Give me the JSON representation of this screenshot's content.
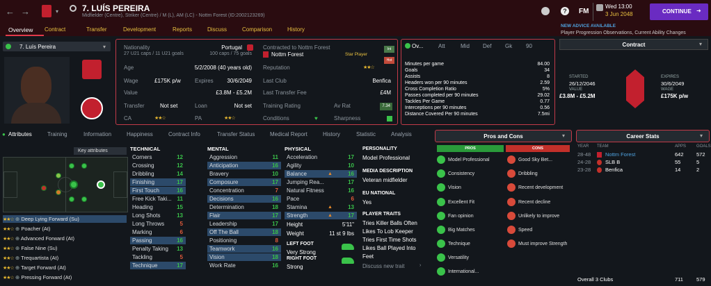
{
  "header": {
    "name": "7. LUÍS PEREIRA",
    "subtitle": "Midfielder (Centre), Striker (Centre) / M (L), AM (LC) - Nottm Forest (ID:2002123269)",
    "date": "Wed 13:00",
    "date2": "3 Jun 2048",
    "fm": "FM",
    "continue": "CONTINUE"
  },
  "nav": [
    "Overview",
    "Contract",
    "Transfer",
    "Development",
    "Reports",
    "Discuss",
    "Comparison",
    "History"
  ],
  "advice": {
    "title": "NEW ADVICE AVAILABLE",
    "text": "Player Progression Observations, Current Ability Changes"
  },
  "player_card": {
    "name": "7. Luís Pereira"
  },
  "info": {
    "nationality_k": "Nationality",
    "nationality_v": "Portugal",
    "u21": "27 U21 caps / 11 U21 goals",
    "caps": "100 caps / 75 goals",
    "age_k": "Age",
    "age_v": "5/2/2008 (40 years old)",
    "wage_k": "Wage",
    "wage_v": "£175K p/w",
    "expires_k": "Expires",
    "expires_v": "30/6/2049",
    "value_k": "Value",
    "value_v": "£3.8M - £5.2M",
    "transfer_k": "Transfer",
    "transfer_v": "Not set",
    "loan_k": "Loan",
    "loan_v": "Not set",
    "ca_k": "CA",
    "pa_k": "PA"
  },
  "club": {
    "contracted": "Contracted to Nottm Forest",
    "club": "Nottm Forest",
    "star": "Star Player",
    "int": "Int",
    "hot": "Hot",
    "rep_k": "Reputation",
    "lastclub_k": "Last Club",
    "lastclub_v": "Benfica",
    "fee_k": "Last Transfer Fee",
    "fee_v": "£4M",
    "training_k": "Training Rating",
    "avrat_k": "Av Rat",
    "avrat_v": "7.34",
    "cond_k": "Conditions",
    "sharp_k": "Sharpness"
  },
  "stats_tabs": [
    "Ov...",
    "Att",
    "Mid",
    "Def",
    "Gk",
    "90"
  ],
  "stats": [
    [
      "Minutes per game",
      "84.00"
    ],
    [
      "Goals",
      "34"
    ],
    [
      "Assists",
      "8"
    ],
    [
      "Headers won per 90 minutes",
      "2.59"
    ],
    [
      "Cross Completion Ratio",
      "5%"
    ],
    [
      "Passes completed per 90 minutes",
      "29.02"
    ],
    [
      "Tackles Per Game",
      "0.77"
    ],
    [
      "Interceptions per 90 minutes",
      "0.56"
    ],
    [
      "Distance Covered Per 90 minutes",
      "7.5mi"
    ]
  ],
  "contract": {
    "title": "Contract",
    "started_k": "STARTED",
    "started_v": "26/12/2046",
    "value_k": "VALUE",
    "value_v": "£3.8M - £5.2M",
    "expires_k": "EXPIRES",
    "expires_v": "30/6/2049",
    "wage_k": "WAGE",
    "wage_v": "£175K p/w"
  },
  "subtabs": [
    "Attributes",
    "Training",
    "Information",
    "Happiness",
    "Contract Info",
    "Transfer Status",
    "Medical Report",
    "History",
    "Statistic",
    "Analysis"
  ],
  "key_attr": "Key attributes",
  "technical": {
    "title": "TECHNICAL",
    "items": [
      [
        "Corners",
        "12"
      ],
      [
        "Crossing",
        "12"
      ],
      [
        "Dribbling",
        "14"
      ],
      [
        "Finishing",
        "17"
      ],
      [
        "First Touch",
        "16"
      ],
      [
        "Free Kick Taki...",
        "11"
      ],
      [
        "Heading",
        "15"
      ],
      [
        "Long Shots",
        "13"
      ],
      [
        "Long Throws",
        "5"
      ],
      [
        "Marking",
        "6"
      ],
      [
        "Passing",
        "16"
      ],
      [
        "Penalty Taking",
        "13"
      ],
      [
        "Tackling",
        "5"
      ],
      [
        "Technique",
        "17"
      ]
    ]
  },
  "mental": {
    "title": "MENTAL",
    "items": [
      [
        "Aggression",
        "11"
      ],
      [
        "Anticipation",
        "16"
      ],
      [
        "Bravery",
        "10"
      ],
      [
        "Composure",
        "17"
      ],
      [
        "Concentration",
        "7"
      ],
      [
        "Decisions",
        "16"
      ],
      [
        "Determination",
        "18"
      ],
      [
        "Flair",
        "17"
      ],
      [
        "Leadership",
        "17"
      ],
      [
        "Off The Ball",
        "18"
      ],
      [
        "Positioning",
        "8"
      ],
      [
        "Teamwork",
        "16"
      ],
      [
        "Vision",
        "18"
      ],
      [
        "Work Rate",
        "16"
      ]
    ]
  },
  "physical": {
    "title": "PHYSICAL",
    "items": [
      [
        "Acceleration",
        "17"
      ],
      [
        "Agility",
        "10"
      ],
      [
        "Balance",
        "16"
      ],
      [
        "Jumping Rea...",
        "17"
      ],
      [
        "Natural Fitness",
        "16"
      ],
      [
        "Pace",
        "6"
      ],
      [
        "Stamina",
        "13"
      ],
      [
        "Strength",
        "17"
      ]
    ]
  },
  "body": {
    "height_k": "Height",
    "height_v": "5'11\"",
    "weight_k": "Weight",
    "weight_v": "11 st 9 lbs",
    "lf_k": "LEFT FOOT",
    "lf_v": "Very Strong",
    "rf_k": "RIGHT FOOT",
    "rf_v": "Strong"
  },
  "personality": {
    "title": "PERSONALITY",
    "v": "Model Professional",
    "media_k": "MEDIA DESCRIPTION",
    "media_v": "Veteran midfielder",
    "eu_k": "EU NATIONAL",
    "eu_v": "Yes",
    "traits_k": "PLAYER TRAITS",
    "traits": [
      "Tries Killer Balls Often",
      "Likes To Lob Keeper",
      "Tries First Time Shots",
      "Likes Ball Played Into",
      "Feet"
    ],
    "discuss": "Discuss new trait"
  },
  "roles": [
    "Deep Lying Forward (Su)",
    "Poacher (At)",
    "Advanced Forward (At)",
    "False Nine (Su)",
    "Trequartista (At)",
    "Target Forward (At)",
    "Pressing Forward (At)"
  ],
  "proscons": {
    "title": "Pros and Cons",
    "pros_h": "PROS",
    "cons_h": "CONS",
    "pros": [
      "Model Professional",
      "Consistency",
      "Vision",
      "Excellent Fit",
      "Fan opinion",
      "Big Matches",
      "Technique",
      "Versatility",
      "International..."
    ],
    "cons": [
      "Good Sky Bet...",
      "Dribbling",
      "Recent development",
      "Recent decline",
      "Unlikely to improve",
      "Speed",
      "Must improve Strength"
    ]
  },
  "career": {
    "title": "Career Stats",
    "h_year": "YEAR",
    "h_team": "TEAM",
    "h_apps": "APPS",
    "h_goals": "GOALS",
    "rows": [
      [
        "28-48",
        "Nottm Forest",
        "642",
        "572"
      ],
      [
        "24-28",
        "SLB B",
        "55",
        "5"
      ],
      [
        "23-28",
        "Benfica",
        "14",
        "2"
      ]
    ],
    "overall": "Overall 3 Clubs",
    "overall_apps": "711",
    "overall_goals": "579"
  }
}
